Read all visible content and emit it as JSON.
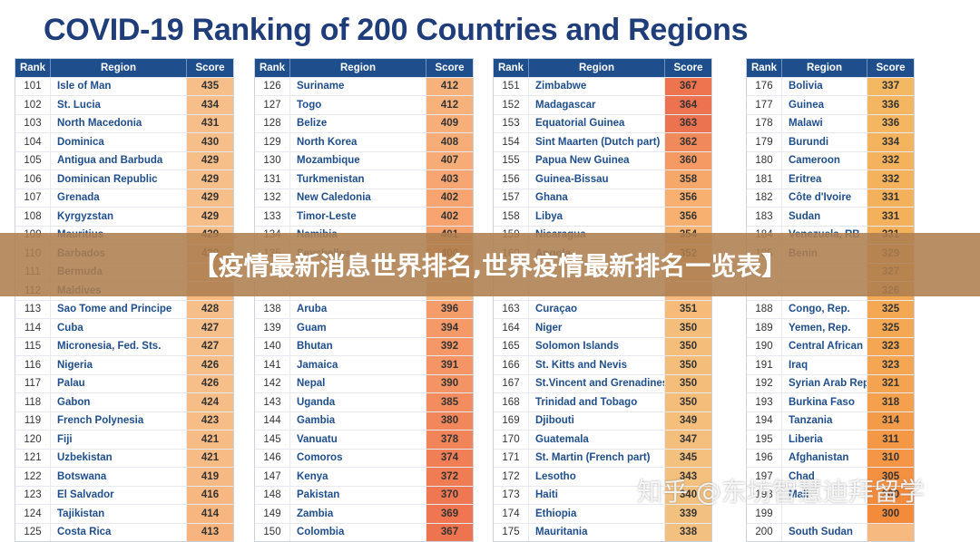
{
  "title": "COVID-19 Ranking of 200 Countries and Regions",
  "headers": {
    "rank": "Rank",
    "region": "Region",
    "score": "Score"
  },
  "overlay_text": "【疫情最新消息世界排名,世界疫情最新排名一览表】",
  "watermark_text": "知乎 @东坊智慧迪拜留学",
  "score_colors": {
    "435": "#f6bf8a",
    "434": "#f6bf8a",
    "431": "#f6bf8a",
    "430": "#f6bf8a",
    "429": "#f6bf8a",
    "428": "#f6bf8a",
    "427": "#f6bf8a",
    "426": "#f6bf8a",
    "424": "#f7bd87",
    "423": "#f7bd87",
    "421": "#f7bb85",
    "419": "#f7b983",
    "416": "#f7b781",
    "414": "#f7b57f",
    "413": "#f7b47e",
    "412": "#f7b27c",
    "409": "#f7ae79",
    "408": "#f7ad78",
    "407": "#f7ab76",
    "403": "#f7a572",
    "402": "#f7a470",
    "401": "#f6a26f",
    "400": "#f6a16e",
    "396": "#f59c6b",
    "394": "#f59968",
    "392": "#f59766",
    "391": "#f59565",
    "390": "#f49363",
    "385": "#f38d5f",
    "380": "#f2875b",
    "378": "#f28459",
    "374": "#f17f56",
    "372": "#f07c54",
    "370": "#ef7852",
    "369": "#ef7651",
    "367": "#ee744f",
    "364": "#ed7250",
    "363": "#ec7350",
    "362": "#f08a5a",
    "360": "#f59a63",
    "358": "#f6a86a",
    "356": "#f7b06f",
    "354": "#f7b573",
    "352": "#f6ba77",
    "351": "#f6bb78",
    "350": "#f5bd7a",
    "349": "#f5be7b",
    "347": "#f4bf7c",
    "345": "#f4c07d",
    "343": "#f3c07e",
    "340": "#f3c17f",
    "339": "#f3c17f",
    "338": "#f3c17f",
    "337": "#f4b762",
    "336": "#f4b660",
    "334": "#f4b45e",
    "332": "#f4b25c",
    "331": "#f4b15b",
    "329": "#f4ae58",
    "327": "#f4ac56",
    "326": "#f4aa55",
    "325": "#f4a854",
    "323": "#f4a652",
    "321": "#f4a450",
    "318": "#f4a04d",
    "314": "#f49b49",
    "311": "#f49846",
    "310": "#f49645",
    "305": "#f49140",
    "300": "#f48b3b"
  },
  "tables": [
    {
      "rows": [
        {
          "rank": "101",
          "region": "Isle of Man",
          "score": "435"
        },
        {
          "rank": "102",
          "region": "St. Lucia",
          "score": "434"
        },
        {
          "rank": "103",
          "region": "North Macedonia",
          "score": "431"
        },
        {
          "rank": "104",
          "region": "Dominica",
          "score": "430"
        },
        {
          "rank": "105",
          "region": "Antigua and Barbuda",
          "score": "429"
        },
        {
          "rank": "106",
          "region": "Dominican Republic",
          "score": "429"
        },
        {
          "rank": "107",
          "region": "Grenada",
          "score": "429"
        },
        {
          "rank": "108",
          "region": "Kyrgyzstan",
          "score": "429"
        },
        {
          "rank": "109",
          "region": "Mauritius",
          "score": "429"
        },
        {
          "rank": "110",
          "region": "Barbados",
          "score": "428"
        },
        {
          "rank": "111",
          "region": "Bermuda",
          "score": ""
        },
        {
          "rank": "112",
          "region": "Maldives",
          "score": ""
        },
        {
          "rank": "113",
          "region": "Sao Tome and Principe",
          "score": "428"
        },
        {
          "rank": "114",
          "region": "Cuba",
          "score": "427"
        },
        {
          "rank": "115",
          "region": "Micronesia, Fed. Sts.",
          "score": "427"
        },
        {
          "rank": "116",
          "region": "Nigeria",
          "score": "426"
        },
        {
          "rank": "117",
          "region": "Palau",
          "score": "426"
        },
        {
          "rank": "118",
          "region": "Gabon",
          "score": "424"
        },
        {
          "rank": "119",
          "region": "French Polynesia",
          "score": "423"
        },
        {
          "rank": "120",
          "region": "Fiji",
          "score": "421"
        },
        {
          "rank": "121",
          "region": "Uzbekistan",
          "score": "421"
        },
        {
          "rank": "122",
          "region": "Botswana",
          "score": "419"
        },
        {
          "rank": "123",
          "region": "El Salvador",
          "score": "416"
        },
        {
          "rank": "124",
          "region": "Tajikistan",
          "score": "414"
        },
        {
          "rank": "125",
          "region": "Costa Rica",
          "score": "413"
        }
      ]
    },
    {
      "rows": [
        {
          "rank": "126",
          "region": "Suriname",
          "score": "412"
        },
        {
          "rank": "127",
          "region": "Togo",
          "score": "412"
        },
        {
          "rank": "128",
          "region": "Belize",
          "score": "409"
        },
        {
          "rank": "129",
          "region": "North Korea",
          "score": "408"
        },
        {
          "rank": "130",
          "region": "Mozambique",
          "score": "407"
        },
        {
          "rank": "131",
          "region": "Turkmenistan",
          "score": "403"
        },
        {
          "rank": "132",
          "region": "New Caledonia",
          "score": "402"
        },
        {
          "rank": "133",
          "region": "Timor-Leste",
          "score": "402"
        },
        {
          "rank": "134",
          "region": "Namibia",
          "score": "401"
        },
        {
          "rank": "135",
          "region": "Seychelles",
          "score": "400"
        },
        {
          "rank": "",
          "region": "",
          "score": ""
        },
        {
          "rank": "",
          "region": "",
          "score": ""
        },
        {
          "rank": "138",
          "region": "Aruba",
          "score": "396"
        },
        {
          "rank": "139",
          "region": "Guam",
          "score": "394"
        },
        {
          "rank": "140",
          "region": "Bhutan",
          "score": "392"
        },
        {
          "rank": "141",
          "region": "Jamaica",
          "score": "391"
        },
        {
          "rank": "142",
          "region": "Nepal",
          "score": "390"
        },
        {
          "rank": "143",
          "region": "Uganda",
          "score": "385"
        },
        {
          "rank": "144",
          "region": "Gambia",
          "score": "380"
        },
        {
          "rank": "145",
          "region": "Vanuatu",
          "score": "378"
        },
        {
          "rank": "146",
          "region": "Comoros",
          "score": "374"
        },
        {
          "rank": "147",
          "region": "Kenya",
          "score": "372"
        },
        {
          "rank": "148",
          "region": "Pakistan",
          "score": "370"
        },
        {
          "rank": "149",
          "region": "Zambia",
          "score": "369"
        },
        {
          "rank": "150",
          "region": "Colombia",
          "score": "367"
        }
      ]
    },
    {
      "rows": [
        {
          "rank": "151",
          "region": "Zimbabwe",
          "score": "367"
        },
        {
          "rank": "152",
          "region": "Madagascar",
          "score": "364"
        },
        {
          "rank": "153",
          "region": "Equatorial Guinea",
          "score": "363"
        },
        {
          "rank": "154",
          "region": "Sint Maarten (Dutch part)",
          "score": "362"
        },
        {
          "rank": "155",
          "region": "Papua New Guinea",
          "score": "360"
        },
        {
          "rank": "156",
          "region": "Guinea-Bissau",
          "score": "358"
        },
        {
          "rank": "157",
          "region": "Ghana",
          "score": "356"
        },
        {
          "rank": "158",
          "region": "Libya",
          "score": "356"
        },
        {
          "rank": "159",
          "region": "Nicaragua",
          "score": "354"
        },
        {
          "rank": "160",
          "region": "Angola",
          "score": "352"
        },
        {
          "rank": "",
          "region": "",
          "score": ""
        },
        {
          "rank": "",
          "region": "",
          "score": ""
        },
        {
          "rank": "163",
          "region": "Curaçao",
          "score": "351"
        },
        {
          "rank": "164",
          "region": "Niger",
          "score": "350"
        },
        {
          "rank": "165",
          "region": "Solomon Islands",
          "score": "350"
        },
        {
          "rank": "166",
          "region": "St. Kitts and Nevis",
          "score": "350"
        },
        {
          "rank": "167",
          "region": "St.Vincent and Grenadines",
          "score": "350"
        },
        {
          "rank": "168",
          "region": "Trinidad and Tobago",
          "score": "350"
        },
        {
          "rank": "169",
          "region": "Djibouti",
          "score": "349"
        },
        {
          "rank": "170",
          "region": "Guatemala",
          "score": "347"
        },
        {
          "rank": "171",
          "region": "St. Martin (French part)",
          "score": "345"
        },
        {
          "rank": "172",
          "region": "Lesotho",
          "score": "343"
        },
        {
          "rank": "173",
          "region": "Haiti",
          "score": "340"
        },
        {
          "rank": "174",
          "region": "Ethiopia",
          "score": "339"
        },
        {
          "rank": "175",
          "region": "Mauritania",
          "score": "338"
        }
      ]
    },
    {
      "rows": [
        {
          "rank": "176",
          "region": "Bolivia",
          "score": "337"
        },
        {
          "rank": "177",
          "region": "Guinea",
          "score": "336"
        },
        {
          "rank": "178",
          "region": "Malawi",
          "score": "336"
        },
        {
          "rank": "179",
          "region": "Burundi",
          "score": "334"
        },
        {
          "rank": "180",
          "region": "Cameroon",
          "score": "332"
        },
        {
          "rank": "181",
          "region": "Eritrea",
          "score": "332"
        },
        {
          "rank": "182",
          "region": "Côte d'Ivoire",
          "score": "331"
        },
        {
          "rank": "183",
          "region": "Sudan",
          "score": "331"
        },
        {
          "rank": "184",
          "region": "Venezuela, RB",
          "score": "331"
        },
        {
          "rank": "185",
          "region": "Benin",
          "score": "329"
        },
        {
          "rank": "",
          "region": "",
          "score": "327"
        },
        {
          "rank": "",
          "region": "",
          "score": "326"
        },
        {
          "rank": "188",
          "region": "Congo, Rep.",
          "score": "325"
        },
        {
          "rank": "189",
          "region": "Yemen, Rep.",
          "score": "325"
        },
        {
          "rank": "190",
          "region": "Central African Republic",
          "score": "323"
        },
        {
          "rank": "191",
          "region": "Iraq",
          "score": "323"
        },
        {
          "rank": "192",
          "region": "Syrian Arab Republic",
          "score": "321"
        },
        {
          "rank": "193",
          "region": "Burkina Faso",
          "score": "318"
        },
        {
          "rank": "194",
          "region": "Tanzania",
          "score": "314"
        },
        {
          "rank": "195",
          "region": "Liberia",
          "score": "311"
        },
        {
          "rank": "196",
          "region": "Afghanistan",
          "score": "310"
        },
        {
          "rank": "197",
          "region": "Chad",
          "score": "305"
        },
        {
          "rank": "198",
          "region": "Mali",
          "score": "300"
        },
        {
          "rank": "199",
          "region": "",
          "score": "300"
        },
        {
          "rank": "200",
          "region": "South Sudan",
          "score": ""
        }
      ]
    }
  ]
}
